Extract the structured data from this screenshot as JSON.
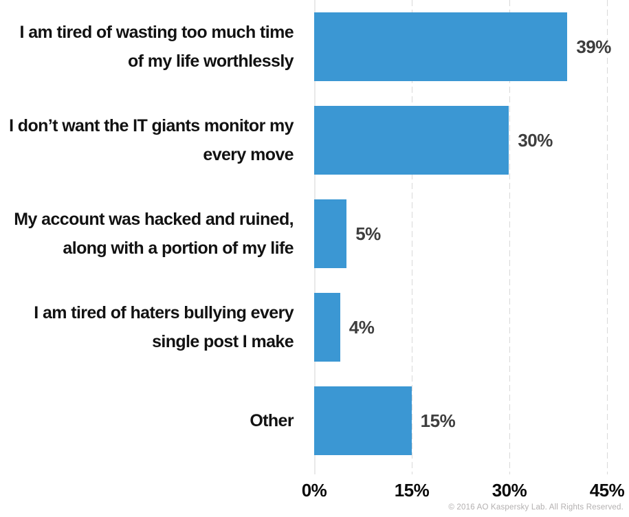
{
  "chart_data": {
    "type": "bar",
    "orientation": "horizontal",
    "categories": [
      "I am tired of wasting too much time\nof my life worthlessly",
      "I don’t want the IT giants monitor my\nevery move",
      "My account was hacked and ruined,\nalong with a portion of my life",
      "I am tired of haters bullying every\nsingle post I make",
      "Other"
    ],
    "values": [
      39,
      30,
      5,
      4,
      15
    ],
    "value_labels": [
      "39%",
      "30%",
      "5%",
      "4%",
      "15%"
    ],
    "title": "",
    "xlabel": "",
    "ylabel": "",
    "xlim": [
      0,
      45
    ],
    "x_ticks": [
      "0%",
      "15%",
      "30%",
      "45%"
    ],
    "x_tick_values": [
      0,
      15,
      30,
      45
    ],
    "grid": "vertical-dashed",
    "legend": "none",
    "bar_color": "#3B97D3"
  },
  "footer": {
    "copyright": "© 2016 AO Kaspersky Lab. All Rights Reserved."
  }
}
